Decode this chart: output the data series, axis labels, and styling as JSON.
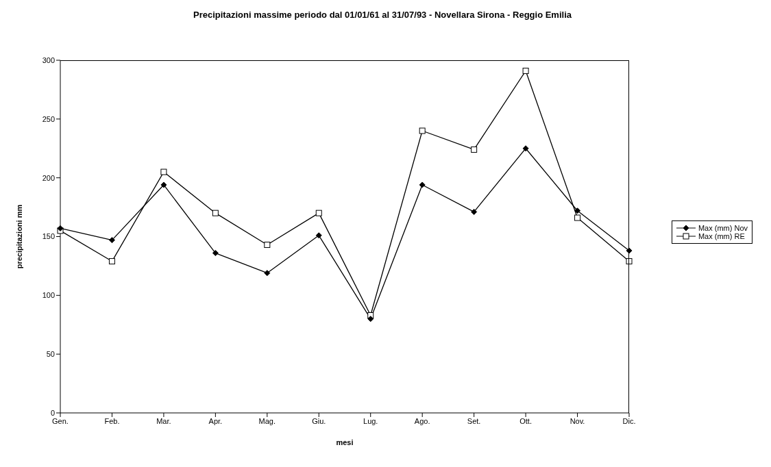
{
  "chart_data": {
    "type": "line",
    "title": "Precipitazioni massime periodo dal 01/01/61 al 31/07/93 - Novellara Sirona - Reggio Emilia",
    "xlabel": "mesi",
    "ylabel": "precipitazioni mm",
    "categories": [
      "Gen.",
      "Feb.",
      "Mar.",
      "Apr.",
      "Mag.",
      "Giu.",
      "Lug.",
      "Ago.",
      "Set.",
      "Ott.",
      "Nov.",
      "Dic."
    ],
    "series": [
      {
        "name": "Max (mm) Nov",
        "color": "#000000",
        "marker": "diamond",
        "values": [
          157,
          147,
          194,
          136,
          119,
          151,
          80,
          194,
          171,
          225,
          172,
          138
        ]
      },
      {
        "name": "Max (mm) RE",
        "color": "#000000",
        "marker": "square",
        "values": [
          155,
          129,
          205,
          170,
          143,
          170,
          83,
          240,
          224,
          291,
          166,
          129
        ]
      }
    ],
    "ylim": [
      0,
      300
    ],
    "yticks": [
      0,
      50,
      100,
      150,
      200,
      250,
      300
    ],
    "grid": false,
    "legend": "right",
    "line_style": "solid"
  }
}
